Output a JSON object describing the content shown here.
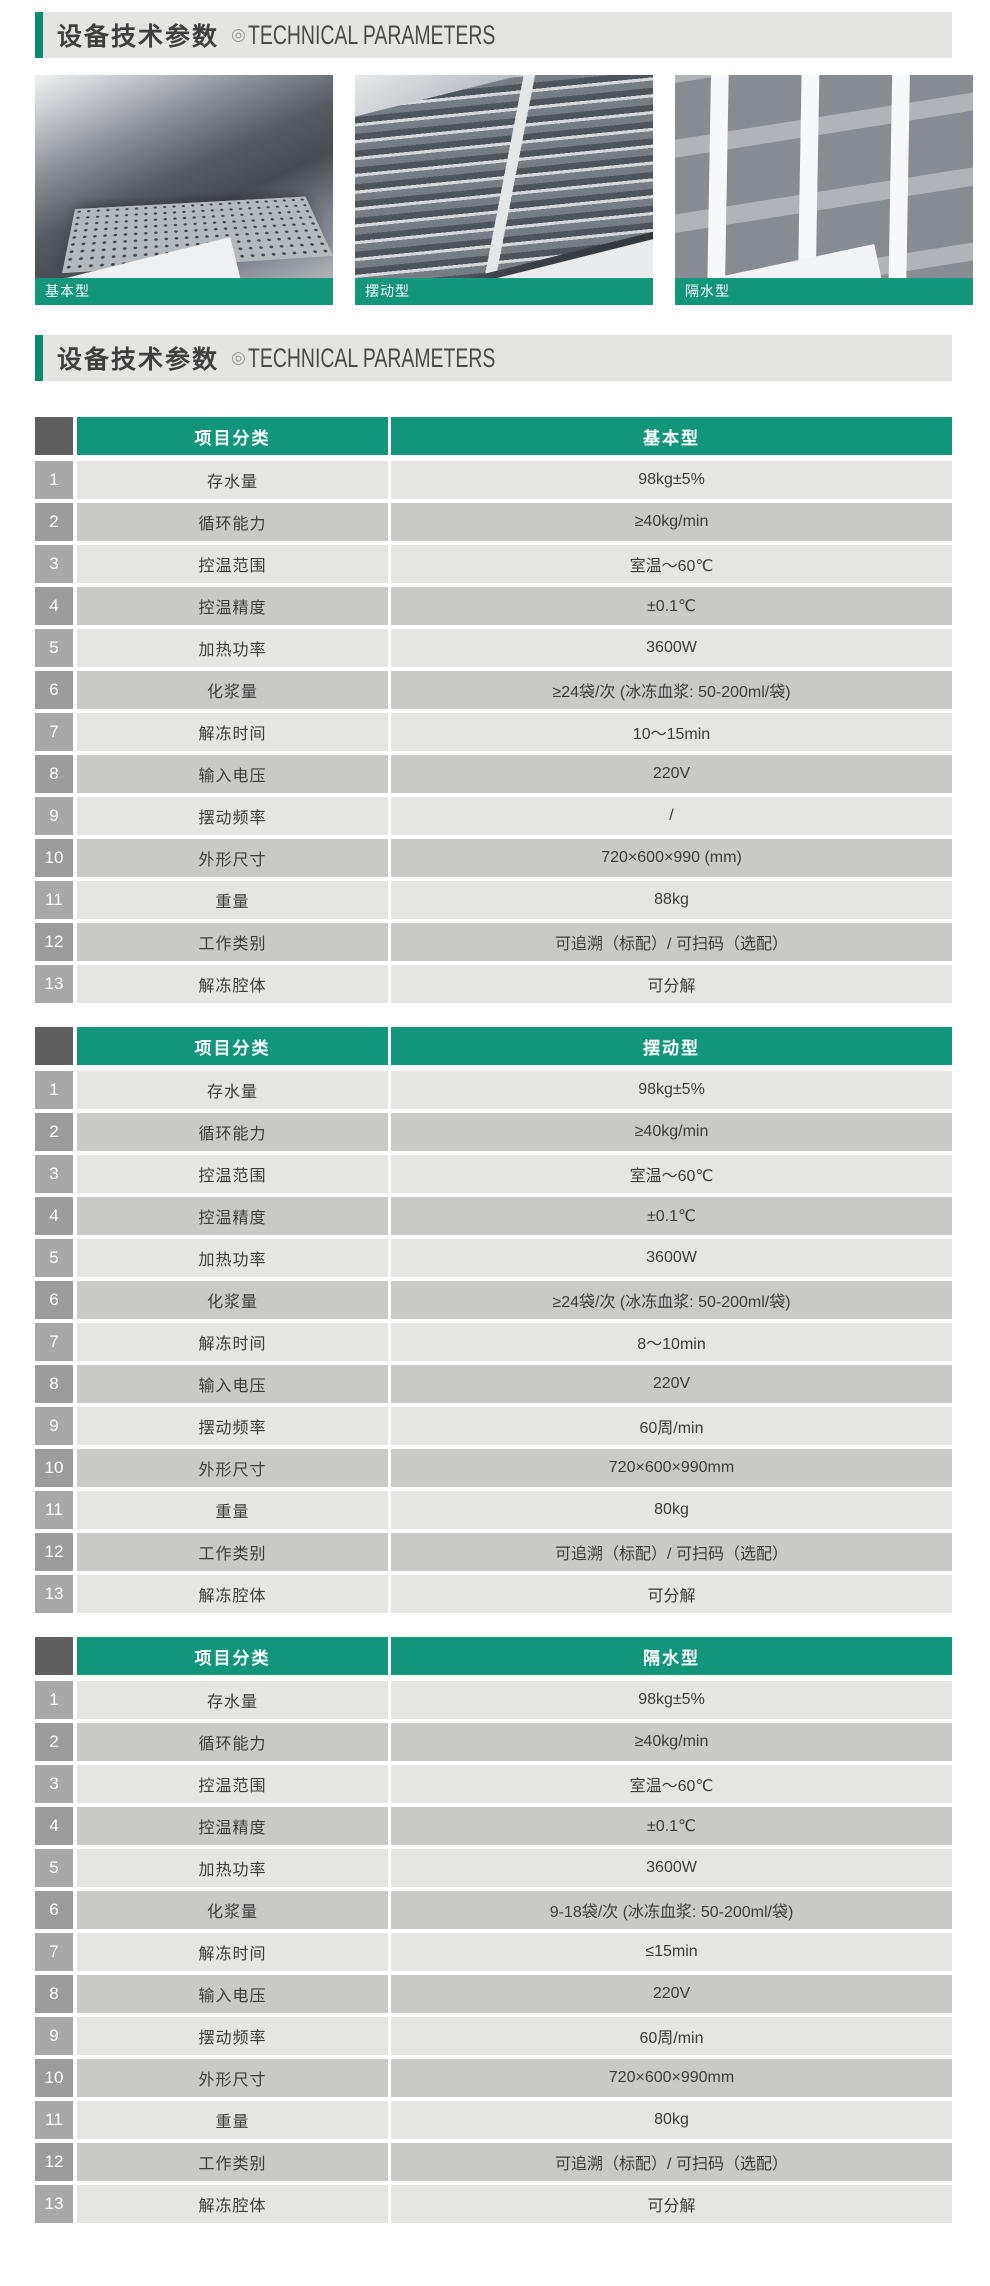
{
  "header": {
    "title_zh": "设备技术参数",
    "separator": "◎",
    "title_en": "TECHNICAL PARAMETERS"
  },
  "product_images": [
    {
      "label": "基本型",
      "kind": "basic",
      "photo": "stainless-steel-tank-with-perforated-plate"
    },
    {
      "label": "摆动型",
      "kind": "swing",
      "photo": "stainless-steel-tank-with-swing-rack"
    },
    {
      "label": "隔水型",
      "kind": "isolated",
      "photo": "nine-compartment-water-isolated-tray"
    }
  ],
  "tables": [
    {
      "col1_header": "项目分类",
      "col2_header": "基本型",
      "rows": [
        {
          "no": "1",
          "name": "存水量",
          "value": "98kg±5%"
        },
        {
          "no": "2",
          "name": "循环能力",
          "value": "≥40kg/min"
        },
        {
          "no": "3",
          "name": "控温范围",
          "value": "室温～60℃"
        },
        {
          "no": "4",
          "name": "控温精度",
          "value": "±0.1℃"
        },
        {
          "no": "5",
          "name": "加热功率",
          "value": "3600W"
        },
        {
          "no": "6",
          "name": "化浆量",
          "value": "≥24袋/次 (冰冻血浆: 50-200ml/袋)"
        },
        {
          "no": "7",
          "name": "解冻时间",
          "value": "10～15min"
        },
        {
          "no": "8",
          "name": "输入电压",
          "value": "220V"
        },
        {
          "no": "9",
          "name": "摆动频率",
          "value": "/"
        },
        {
          "no": "10",
          "name": "外形尺寸",
          "value": "720×600×990 (mm)"
        },
        {
          "no": "11",
          "name": "重量",
          "value": "88kg"
        },
        {
          "no": "12",
          "name": "工作类别",
          "value": "可追溯（标配）/ 可扫码（选配）"
        },
        {
          "no": "13",
          "name": "解冻腔体",
          "value": "可分解"
        }
      ]
    },
    {
      "col1_header": "项目分类",
      "col2_header": "摆动型",
      "rows": [
        {
          "no": "1",
          "name": "存水量",
          "value": "98kg±5%"
        },
        {
          "no": "2",
          "name": "循环能力",
          "value": "≥40kg/min"
        },
        {
          "no": "3",
          "name": "控温范围",
          "value": "室温～60℃"
        },
        {
          "no": "4",
          "name": "控温精度",
          "value": "±0.1℃"
        },
        {
          "no": "5",
          "name": "加热功率",
          "value": "3600W"
        },
        {
          "no": "6",
          "name": "化浆量",
          "value": "≥24袋/次 (冰冻血浆: 50-200ml/袋)"
        },
        {
          "no": "7",
          "name": "解冻时间",
          "value": "8～10min"
        },
        {
          "no": "8",
          "name": "输入电压",
          "value": "220V"
        },
        {
          "no": "9",
          "name": "摆动频率",
          "value": "60周/min"
        },
        {
          "no": "10",
          "name": "外形尺寸",
          "value": "720×600×990mm"
        },
        {
          "no": "11",
          "name": "重量",
          "value": "80kg"
        },
        {
          "no": "12",
          "name": "工作类别",
          "value": "可追溯（标配）/ 可扫码（选配）"
        },
        {
          "no": "13",
          "name": "解冻腔体",
          "value": "可分解"
        }
      ]
    },
    {
      "col1_header": "项目分类",
      "col2_header": "隔水型",
      "rows": [
        {
          "no": "1",
          "name": "存水量",
          "value": "98kg±5%"
        },
        {
          "no": "2",
          "name": "循环能力",
          "value": "≥40kg/min"
        },
        {
          "no": "3",
          "name": "控温范围",
          "value": "室温～60℃"
        },
        {
          "no": "4",
          "name": "控温精度",
          "value": "±0.1℃"
        },
        {
          "no": "5",
          "name": "加热功率",
          "value": "3600W"
        },
        {
          "no": "6",
          "name": "化浆量",
          "value": "9-18袋/次 (冰冻血浆: 50-200ml/袋)"
        },
        {
          "no": "7",
          "name": "解冻时间",
          "value": "≤15min"
        },
        {
          "no": "8",
          "name": "输入电压",
          "value": "220V"
        },
        {
          "no": "9",
          "name": "摆动频率",
          "value": "60周/min"
        },
        {
          "no": "10",
          "name": "外形尺寸",
          "value": "720×600×990mm"
        },
        {
          "no": "11",
          "name": "重量",
          "value": "80kg"
        },
        {
          "no": "12",
          "name": "工作类别",
          "value": "可追溯（标配）/ 可扫码（选配）"
        },
        {
          "no": "13",
          "name": "解冻腔体",
          "value": "可分解"
        }
      ]
    }
  ],
  "colors": {
    "teal": "#11967C",
    "teal_dark": "#0B8A6F",
    "header_bar_bg": "#E4E4E2",
    "corner_square": "#5F5F5F",
    "row_light": "#E5E5E3",
    "row_dark": "#C9C9C7",
    "num_light": "#A8A8A8",
    "num_dark": "#9C9C9C",
    "text": "#3C3C3C"
  }
}
